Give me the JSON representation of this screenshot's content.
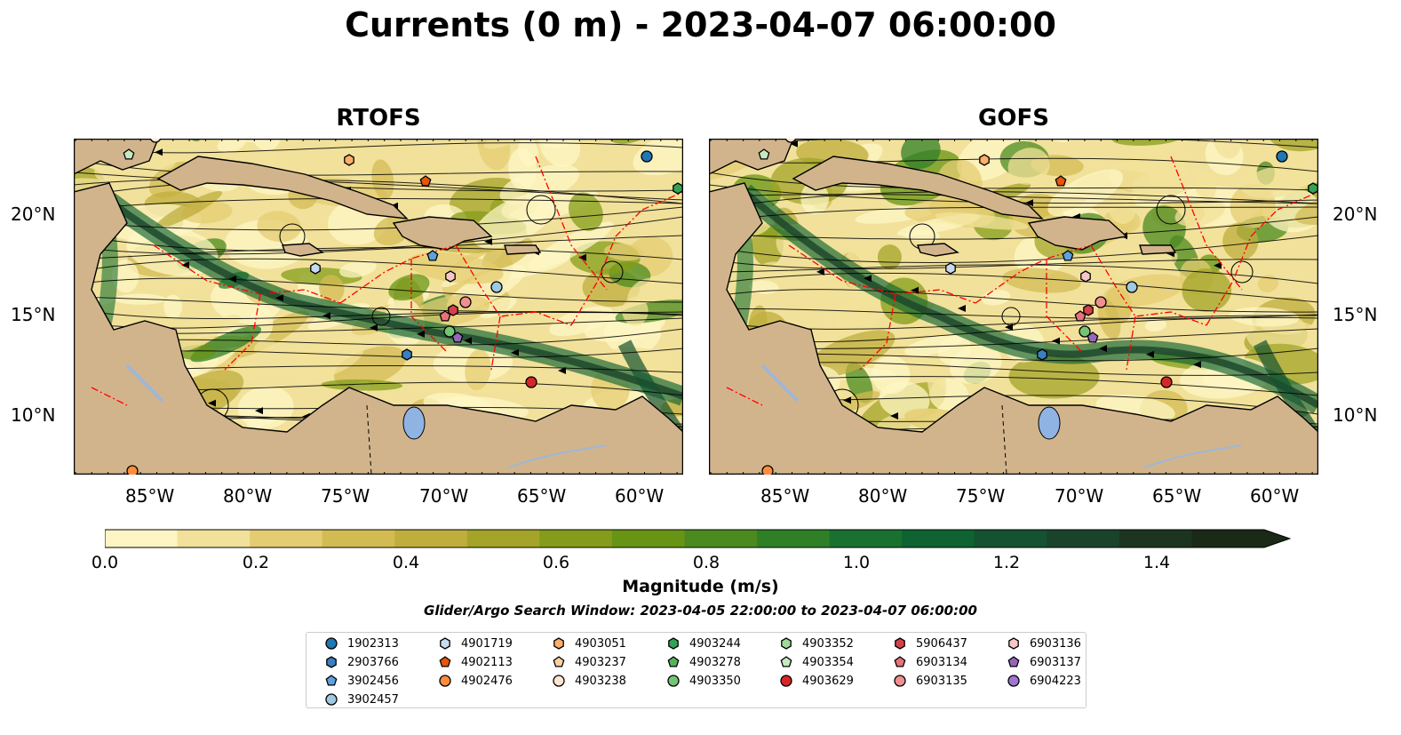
{
  "title": "Currents (0 m) - 2023-04-07 06:00:00",
  "panels": [
    {
      "name": "RTOFS"
    },
    {
      "name": "GOFS"
    }
  ],
  "lat_labels": [
    "20°N",
    "15°N",
    "10°N"
  ],
  "lon_labels": [
    "85°W",
    "80°W",
    "75°W",
    "70°W",
    "65°W",
    "60°W"
  ],
  "colorbar": {
    "label": "Magnitude (m/s)",
    "ticks": [
      "0.0",
      "0.2",
      "0.4",
      "0.6",
      "0.8",
      "1.0",
      "1.2",
      "1.4"
    ],
    "min": 0.0,
    "max": 1.5,
    "extend": "max",
    "colors": [
      "#fdf6c4",
      "#f1e19a",
      "#e4cc72",
      "#d3bb54",
      "#bfae3d",
      "#a3a428",
      "#849c1a",
      "#679414",
      "#4b8a1f",
      "#2f7f27",
      "#18712f",
      "#0f6231",
      "#145231",
      "#1a432b",
      "#1d3520",
      "#1b2a17"
    ]
  },
  "search_window": "Glider/Argo Search Window: 2023-04-05 22:00:00 to 2023-04-07 06:00:00",
  "legend": [
    {
      "id": "1902313",
      "marker": "circle",
      "color": "#1f77b4"
    },
    {
      "id": "2903766",
      "marker": "hexagon",
      "color": "#3a7fc1"
    },
    {
      "id": "3902456",
      "marker": "pentagon",
      "color": "#5da2df"
    },
    {
      "id": "3902457",
      "marker": "circle",
      "color": "#9ecae1"
    },
    {
      "id": "4901719",
      "marker": "hexagon",
      "color": "#c6dbef"
    },
    {
      "id": "4902113",
      "marker": "pentagon",
      "color": "#e6550d"
    },
    {
      "id": "4902476",
      "marker": "circle",
      "color": "#fd8d3c"
    },
    {
      "id": "4903051",
      "marker": "hexagon",
      "color": "#fdae6b"
    },
    {
      "id": "4903237",
      "marker": "pentagon",
      "color": "#fdd0a2"
    },
    {
      "id": "4903238",
      "marker": "circle",
      "color": "#fee6ce"
    },
    {
      "id": "4903244",
      "marker": "hexagon",
      "color": "#31a354"
    },
    {
      "id": "4903278",
      "marker": "pentagon",
      "color": "#55b35e"
    },
    {
      "id": "4903350",
      "marker": "circle",
      "color": "#74c476"
    },
    {
      "id": "4903352",
      "marker": "hexagon",
      "color": "#a1d99b"
    },
    {
      "id": "4903354",
      "marker": "pentagon",
      "color": "#c7e9c0"
    },
    {
      "id": "4903629",
      "marker": "circle",
      "color": "#d62728"
    },
    {
      "id": "5906437",
      "marker": "hexagon",
      "color": "#d6404a"
    },
    {
      "id": "6903134",
      "marker": "pentagon",
      "color": "#e7727b"
    },
    {
      "id": "6903135",
      "marker": "circle",
      "color": "#f08f8f"
    },
    {
      "id": "6903136",
      "marker": "hexagon",
      "color": "#f7c6c7"
    },
    {
      "id": "6903137",
      "marker": "pentagon",
      "color": "#9467bd"
    },
    {
      "id": "6904223",
      "marker": "circle",
      "color": "#9e76cf"
    }
  ],
  "palette": {
    "land": "#d2b48c",
    "coast": "#000000",
    "eez": "#ff0000",
    "streamline": "#000000",
    "river": "#9fb6d6"
  }
}
